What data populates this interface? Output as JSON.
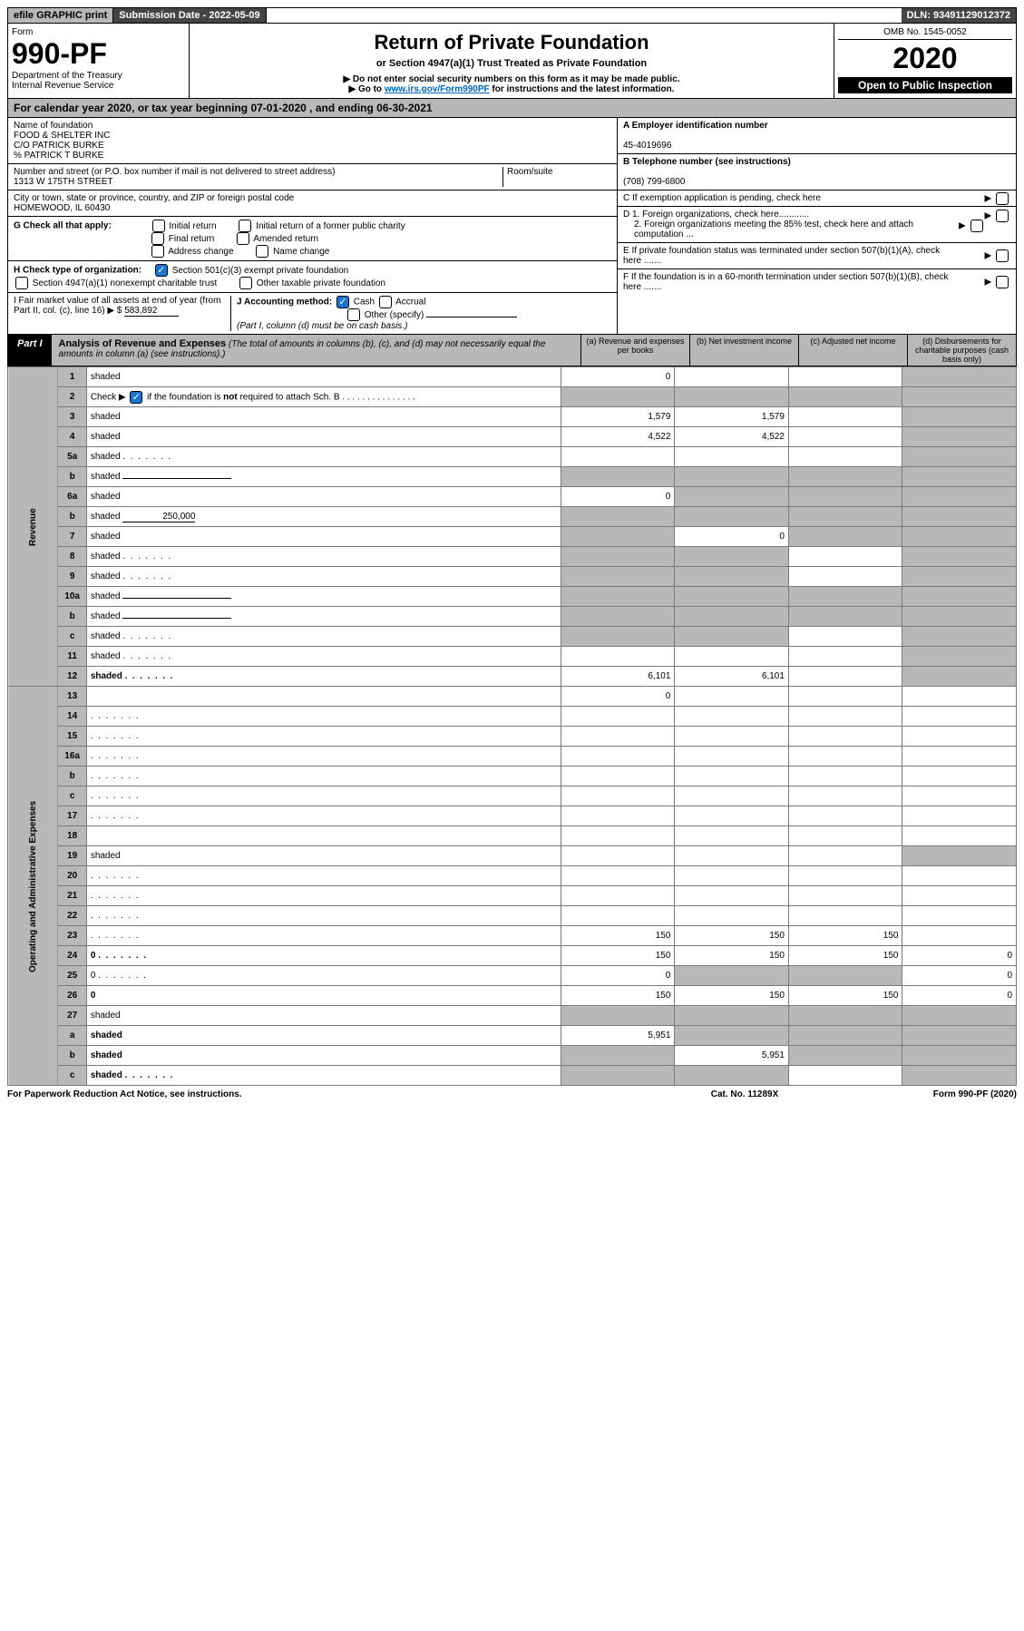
{
  "top": {
    "efile": "efile GRAPHIC print",
    "subdate_label": "Submission Date - ",
    "subdate": "2022-05-09",
    "dln_label": "DLN: ",
    "dln": "93491129012372"
  },
  "header": {
    "form_label": "Form",
    "form_number": "990-PF",
    "dept": "Department of the Treasury",
    "irs": "Internal Revenue Service",
    "title": "Return of Private Foundation",
    "subtitle": "or Section 4947(a)(1) Trust Treated as Private Foundation",
    "note1": "▶ Do not enter social security numbers on this form as it may be made public.",
    "note2_pre": "▶ Go to ",
    "note2_link": "www.irs.gov/Form990PF",
    "note2_post": " for instructions and the latest information.",
    "omb": "OMB No. 1545-0052",
    "year": "2020",
    "open": "Open to Public Inspection"
  },
  "calyear": "For calendar year 2020, or tax year beginning 07-01-2020           , and ending 06-30-2021",
  "foundation": {
    "name_label": "Name of foundation",
    "name1": "FOOD & SHELTER INC",
    "name2": "C/O PATRICK BURKE",
    "name3": "% PATRICK T BURKE",
    "street_label": "Number and street (or P.O. box number if mail is not delivered to street address)",
    "street": "1313 W 175TH STREET",
    "room_label": "Room/suite",
    "city_label": "City or town, state or province, country, and ZIP or foreign postal code",
    "city": "HOMEWOOD, IL  60430",
    "ein_label": "A Employer identification number",
    "ein": "45-4019696",
    "phone_label": "B Telephone number (see instructions)",
    "phone": "(708) 799-6800",
    "c": "C If exemption application is pending, check here",
    "d1": "D 1. Foreign organizations, check here............",
    "d2": "2. Foreign organizations meeting the 85% test, check here and attach computation ...",
    "e": "E If private foundation status was terminated under section 507(b)(1)(A), check here .......",
    "f": "F If the foundation is in a 60-month termination under section 507(b)(1)(B), check here .......",
    "g_label": "G Check all that apply:",
    "g_opts": [
      "Initial return",
      "Initial return of a former public charity",
      "Final return",
      "Amended return",
      "Address change",
      "Name change"
    ],
    "h_label": "H Check type of organization:",
    "h_opts": [
      "Section 501(c)(3) exempt private foundation",
      "Section 4947(a)(1) nonexempt charitable trust",
      "Other taxable private foundation"
    ],
    "i_label": "I Fair market value of all assets at end of year (from Part II, col. (c), line 16) ▶ $",
    "i_val": "583,892",
    "j_label": "J Accounting method:",
    "j_opts": [
      "Cash",
      "Accrual",
      "Other (specify)"
    ],
    "j_note": "(Part I, column (d) must be on cash basis.)"
  },
  "part1": {
    "label": "Part I",
    "title": "Analysis of Revenue and Expenses",
    "title_note": " (The total of amounts in columns (b), (c), and (d) may not necessarily equal the amounts in column (a) (see instructions).)",
    "cols": {
      "a": "(a) Revenue and expenses per books",
      "b": "(b) Net investment income",
      "c": "(c) Adjusted net income",
      "d": "(d) Disbursements for charitable purposes (cash basis only)"
    }
  },
  "sidebar": {
    "revenue": "Revenue",
    "expenses": "Operating and Administrative Expenses"
  },
  "rows": [
    {
      "n": "1",
      "d": "shaded",
      "a": "0",
      "b": "",
      "c": ""
    },
    {
      "n": "2",
      "d": "shaded",
      "a": "shaded",
      "b": "shaded",
      "c": "shaded",
      "bold_not": true
    },
    {
      "n": "3",
      "d": "shaded",
      "a": "1,579",
      "b": "1,579",
      "c": ""
    },
    {
      "n": "4",
      "d": "shaded",
      "a": "4,522",
      "b": "4,522",
      "c": ""
    },
    {
      "n": "5a",
      "d": "shaded",
      "a": "",
      "b": "",
      "c": "",
      "dots": true
    },
    {
      "n": "b",
      "d": "shaded",
      "a": "shaded",
      "b": "shaded",
      "c": "shaded",
      "inline": true
    },
    {
      "n": "6a",
      "d": "shaded",
      "a": "0",
      "b": "shaded",
      "c": "shaded"
    },
    {
      "n": "b",
      "d": "shaded",
      "a": "shaded",
      "b": "shaded",
      "c": "shaded",
      "inline_val": "250,000"
    },
    {
      "n": "7",
      "d": "shaded",
      "a": "shaded",
      "b": "0",
      "c": "shaded"
    },
    {
      "n": "8",
      "d": "shaded",
      "a": "shaded",
      "b": "shaded",
      "c": "",
      "dots": true
    },
    {
      "n": "9",
      "d": "shaded",
      "a": "shaded",
      "b": "shaded",
      "c": "",
      "dots": true
    },
    {
      "n": "10a",
      "d": "shaded",
      "a": "shaded",
      "b": "shaded",
      "c": "shaded",
      "inline": true
    },
    {
      "n": "b",
      "d": "shaded",
      "a": "shaded",
      "b": "shaded",
      "c": "shaded",
      "inline": true
    },
    {
      "n": "c",
      "d": "shaded",
      "a": "shaded",
      "b": "shaded",
      "c": "",
      "dots": true
    },
    {
      "n": "11",
      "d": "shaded",
      "a": "",
      "b": "",
      "c": "",
      "dots": true
    },
    {
      "n": "12",
      "d": "shaded",
      "a": "6,101",
      "b": "6,101",
      "c": "",
      "bold": true,
      "dots": true
    },
    {
      "n": "13",
      "d": "",
      "a": "0",
      "b": "",
      "c": ""
    },
    {
      "n": "14",
      "d": "",
      "a": "",
      "b": "",
      "c": "",
      "dots": true
    },
    {
      "n": "15",
      "d": "",
      "a": "",
      "b": "",
      "c": "",
      "dots": true
    },
    {
      "n": "16a",
      "d": "",
      "a": "",
      "b": "",
      "c": "",
      "dots": true
    },
    {
      "n": "b",
      "d": "",
      "a": "",
      "b": "",
      "c": "",
      "dots": true
    },
    {
      "n": "c",
      "d": "",
      "a": "",
      "b": "",
      "c": "",
      "dots": true
    },
    {
      "n": "17",
      "d": "",
      "a": "",
      "b": "",
      "c": "",
      "dots": true
    },
    {
      "n": "18",
      "d": "",
      "a": "",
      "b": "",
      "c": ""
    },
    {
      "n": "19",
      "d": "shaded",
      "a": "",
      "b": "",
      "c": ""
    },
    {
      "n": "20",
      "d": "",
      "a": "",
      "b": "",
      "c": "",
      "dots": true
    },
    {
      "n": "21",
      "d": "",
      "a": "",
      "b": "",
      "c": "",
      "dots": true
    },
    {
      "n": "22",
      "d": "",
      "a": "",
      "b": "",
      "c": "",
      "dots": true
    },
    {
      "n": "23",
      "d": "",
      "a": "150",
      "b": "150",
      "c": "150",
      "dots": true
    },
    {
      "n": "24",
      "d": "0",
      "a": "150",
      "b": "150",
      "c": "150",
      "bold": true,
      "dots": true
    },
    {
      "n": "25",
      "d": "0",
      "a": "0",
      "b": "shaded",
      "c": "shaded",
      "dots": true
    },
    {
      "n": "26",
      "d": "0",
      "a": "150",
      "b": "150",
      "c": "150",
      "bold": true
    },
    {
      "n": "27",
      "d": "shaded",
      "a": "shaded",
      "b": "shaded",
      "c": "shaded"
    },
    {
      "n": "a",
      "d": "shaded",
      "a": "5,951",
      "b": "shaded",
      "c": "shaded",
      "bold": true
    },
    {
      "n": "b",
      "d": "shaded",
      "a": "shaded",
      "b": "5,951",
      "c": "shaded",
      "bold": true
    },
    {
      "n": "c",
      "d": "shaded",
      "a": "shaded",
      "b": "shaded",
      "c": "",
      "bold": true,
      "dots": true
    }
  ],
  "footer": {
    "left": "For Paperwork Reduction Act Notice, see instructions.",
    "mid": "Cat. No. 11289X",
    "right": "Form 990-PF (2020)"
  },
  "colors": {
    "gray": "#b8b8b8",
    "darkgray": "#444444",
    "link": "#0066cc",
    "check": "#1976d2"
  }
}
